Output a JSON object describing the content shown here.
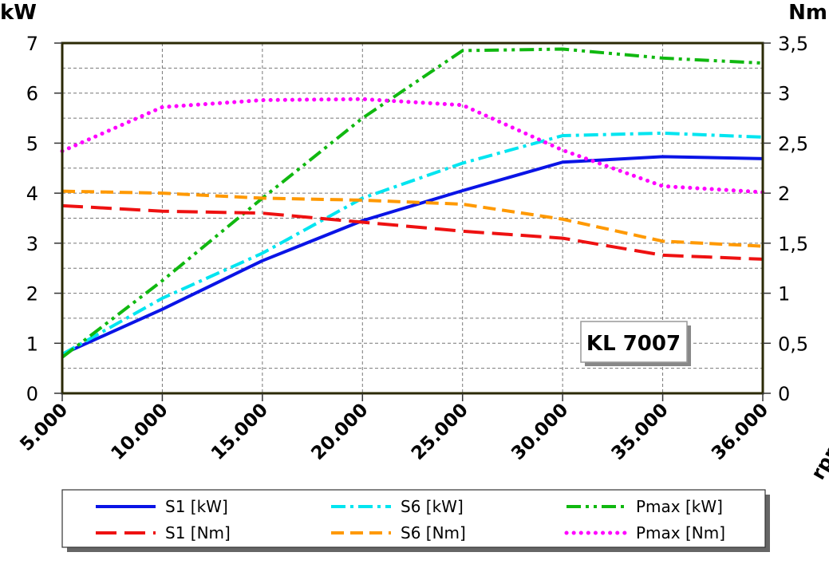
{
  "chart_data": {
    "type": "line",
    "title": "",
    "annotation": "KL 7007",
    "ylabel_left": "kW",
    "ylabel_right": "Nm",
    "xlabel": "rpm",
    "categories": [
      "5.000",
      "10.000",
      "15.000",
      "20.000",
      "25.000",
      "30.000",
      "35.000",
      "36.000"
    ],
    "ylim_left": [
      0,
      7
    ],
    "ylim_right": [
      0,
      3.5
    ],
    "yticks_left": [
      "0",
      "1",
      "2",
      "3",
      "4",
      "5",
      "6",
      "7"
    ],
    "yticks_right": [
      "0",
      "0,5",
      "1",
      "1,5",
      "2",
      "2,5",
      "3",
      "3,5"
    ],
    "grid": true,
    "legend_position": "bottom",
    "series": [
      {
        "name": "S1 [kW]",
        "axis": "left",
        "color": "#0a14e6",
        "style": "solid",
        "values": [
          0.78,
          1.68,
          2.65,
          3.45,
          4.05,
          4.62,
          4.73,
          4.69
        ]
      },
      {
        "name": "S6 [kW]",
        "axis": "left",
        "color": "#00e5f0",
        "style": "dashdot",
        "values": [
          0.78,
          1.9,
          2.8,
          3.9,
          4.6,
          5.15,
          5.2,
          5.12
        ]
      },
      {
        "name": "Pmax [kW]",
        "axis": "left",
        "color": "#10b810",
        "style": "dashdotdot",
        "values": [
          0.72,
          2.25,
          3.9,
          5.5,
          6.85,
          6.88,
          6.7,
          6.6
        ]
      },
      {
        "name": "S1 [Nm]",
        "axis": "right",
        "color": "#ee1111",
        "style": "longdash",
        "values": [
          1.875,
          1.82,
          1.8,
          1.71,
          1.62,
          1.55,
          1.38,
          1.34
        ]
      },
      {
        "name": "S6 [Nm]",
        "axis": "right",
        "color": "#ff9900",
        "style": "dash",
        "values": [
          2.02,
          2.0,
          1.95,
          1.93,
          1.89,
          1.74,
          1.52,
          1.47
        ]
      },
      {
        "name": "Pmax [Nm]",
        "axis": "right",
        "color": "#ff00ff",
        "style": "dot",
        "values": [
          2.42,
          2.86,
          2.93,
          2.94,
          2.88,
          2.43,
          2.07,
          2.01
        ]
      }
    ]
  }
}
